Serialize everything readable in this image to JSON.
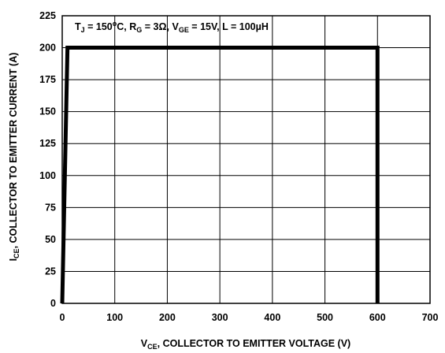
{
  "chart_data": {
    "type": "line",
    "title": "",
    "annotation": {
      "tj_sym": "T",
      "tj_sub": "J",
      "tj_val": " = 150",
      "tj_sup": "o",
      "tj_unit": "C, ",
      "rg_sym": "R",
      "rg_sub": "G",
      "rg_val": " = 3Ω, ",
      "vge_sym": "V",
      "vge_sub": "GE",
      "vge_val": " = 15V, L = 100µH"
    },
    "xlabel": {
      "sym": "V",
      "sub": "CE",
      "text": ", COLLECTOR TO EMITTER VOLTAGE (V)"
    },
    "ylabel": {
      "sym": "I",
      "sub": "CE",
      "text": ", COLLECTOR TO EMITTER CURRENT (A)"
    },
    "xlim": [
      0,
      700
    ],
    "ylim": [
      0,
      225
    ],
    "xticks": [
      0,
      100,
      200,
      300,
      400,
      500,
      600,
      700
    ],
    "yticks": [
      0,
      25,
      50,
      75,
      100,
      125,
      150,
      175,
      200,
      225
    ],
    "grid": true,
    "series": [
      {
        "x": [
          0,
          10,
          600,
          600
        ],
        "y": [
          0,
          200,
          200,
          0
        ]
      }
    ]
  }
}
